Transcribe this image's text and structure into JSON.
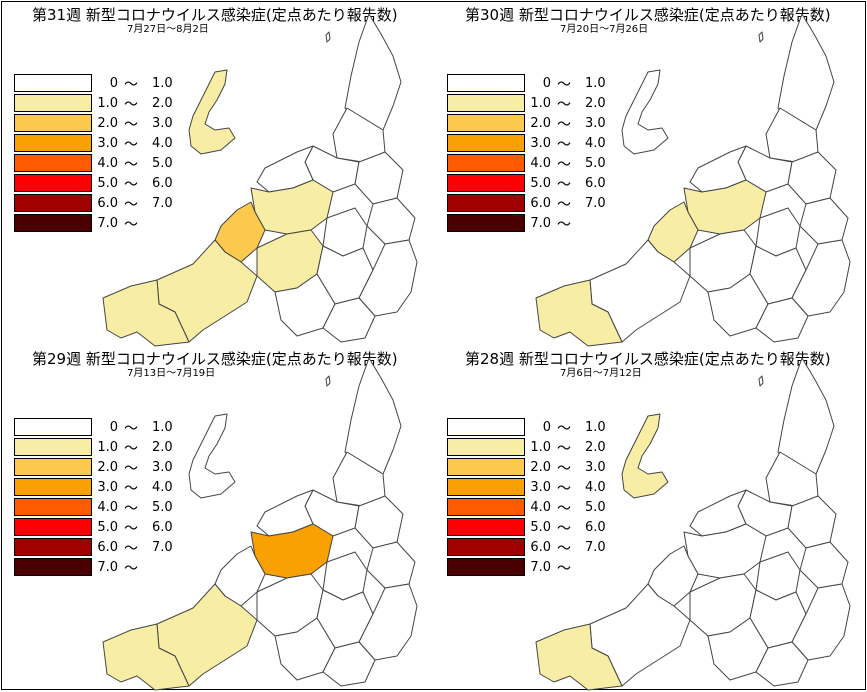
{
  "legend": [
    {
      "lo": "0",
      "hi": "1.0",
      "color": "#ffffff"
    },
    {
      "lo": "1.0",
      "hi": "2.0",
      "color": "#f7eda4"
    },
    {
      "lo": "2.0",
      "hi": "3.0",
      "color": "#fbc94d"
    },
    {
      "lo": "3.0",
      "hi": "4.0",
      "color": "#f9a100"
    },
    {
      "lo": "4.0",
      "hi": "5.0",
      "color": "#ff5a00"
    },
    {
      "lo": "5.0",
      "hi": "6.0",
      "color": "#ff0000"
    },
    {
      "lo": "6.0",
      "hi": "7.0",
      "color": "#a00000"
    },
    {
      "lo": "7.0",
      "hi": "",
      "color": "#4a0000"
    }
  ],
  "tilde": "～",
  "panels": [
    {
      "title": "第31週 新型コロナウイルス感染症(定点あたり報告数)",
      "subtitle": "7月27日～8月2日",
      "levels": {
        "sado": 1,
        "west": 1,
        "west2": 1,
        "central_west": 2,
        "central": 1,
        "south_central": 1
      }
    },
    {
      "title": "第30週 新型コロナウイルス感染症(定点あたり報告数)",
      "subtitle": "7月20日～7月26日",
      "levels": {
        "west": 1,
        "central_west": 1,
        "central": 1
      }
    },
    {
      "title": "第29週 新型コロナウイルス感染症(定点あたり報告数)",
      "subtitle": "7月13日～7月19日",
      "levels": {
        "west": 1,
        "west2": 1,
        "central": 3
      }
    },
    {
      "title": "第28週 新型コロナウイルス感染症(定点あたり報告数)",
      "subtitle": "7月6日～7月12日",
      "levels": {
        "sado": 1,
        "west": 1
      }
    }
  ]
}
